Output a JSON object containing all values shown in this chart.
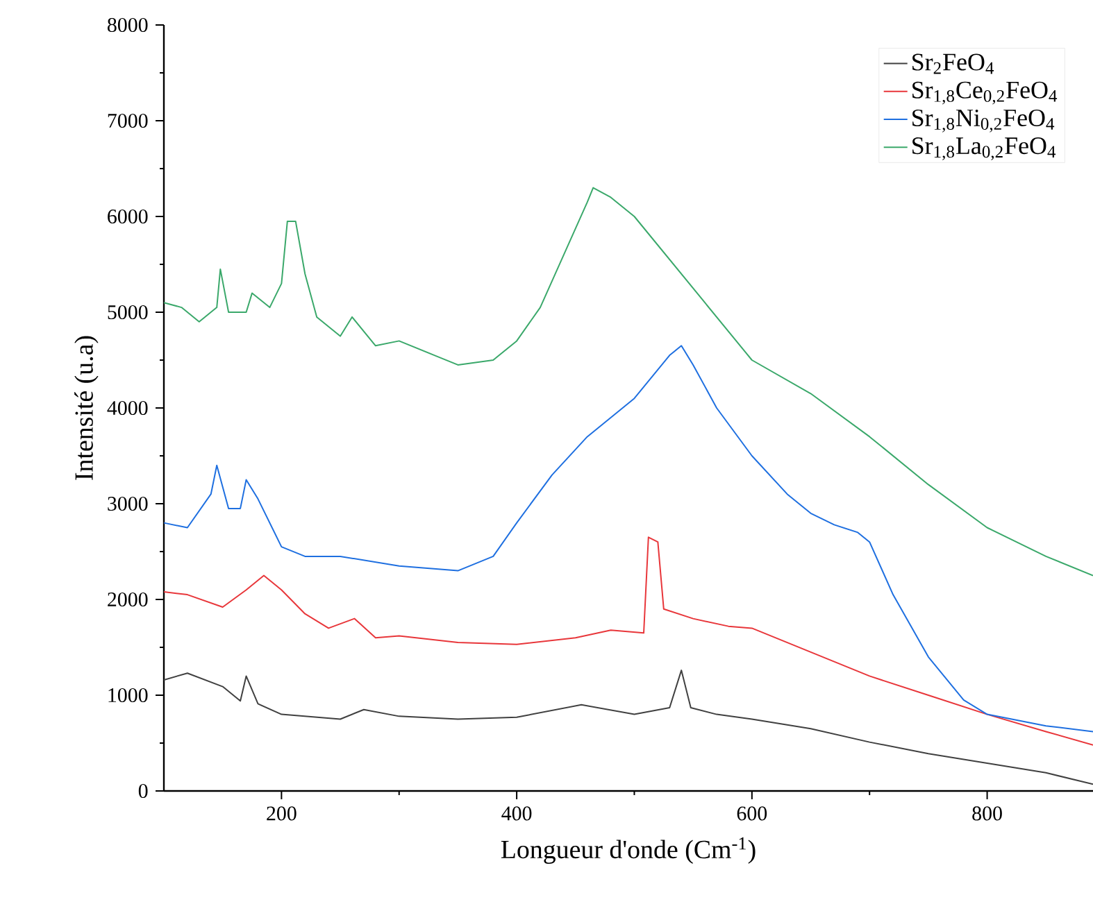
{
  "chart_data": {
    "type": "line",
    "xlabel": "Longueur d'onde (Cm$^{-1}$)",
    "ylabel": "Intensité (u.a)",
    "xlim": [
      100,
      890
    ],
    "ylim": [
      0,
      8000
    ],
    "xticks": [
      200,
      400,
      600,
      800
    ],
    "yticks": [
      0,
      1000,
      2000,
      3000,
      4000,
      5000,
      6000,
      7000,
      8000
    ],
    "legend": "top right",
    "series": [
      {
        "name": "Sr$_{2}$FeO$_{4}$",
        "color": "#404040",
        "x": [
          100,
          120,
          150,
          165,
          170,
          180,
          200,
          250,
          270,
          300,
          350,
          400,
          455,
          500,
          530,
          540,
          548,
          570,
          600,
          650,
          700,
          750,
          800,
          850,
          890
        ],
        "values": [
          1160,
          1230,
          1090,
          940,
          1200,
          910,
          800,
          750,
          850,
          780,
          750,
          770,
          900,
          800,
          870,
          1260,
          870,
          800,
          750,
          650,
          510,
          390,
          290,
          190,
          70
        ]
      },
      {
        "name": "Sr$_{1,8}$Ce$_{0,2}$FeO$_{4}$",
        "color": "#e8363a",
        "x": [
          100,
          120,
          150,
          170,
          185,
          200,
          220,
          240,
          262,
          280,
          300,
          350,
          400,
          450,
          480,
          508,
          512,
          520,
          525,
          550,
          580,
          600,
          650,
          700,
          750,
          800,
          850,
          890
        ],
        "values": [
          2080,
          2050,
          1920,
          2100,
          2250,
          2100,
          1850,
          1700,
          1800,
          1600,
          1620,
          1550,
          1530,
          1600,
          1680,
          1650,
          2650,
          2600,
          1900,
          1800,
          1720,
          1700,
          1450,
          1200,
          1000,
          800,
          620,
          480
        ]
      },
      {
        "name": "Sr$_{1,8}$Ni$_{0,2}$FeO$_{4}$",
        "color": "#1e6fe0",
        "x": [
          100,
          120,
          140,
          145,
          155,
          165,
          170,
          180,
          200,
          220,
          250,
          300,
          350,
          380,
          400,
          430,
          460,
          500,
          530,
          540,
          550,
          570,
          600,
          630,
          650,
          670,
          690,
          700,
          720,
          750,
          780,
          800,
          850,
          890
        ],
        "values": [
          2800,
          2750,
          3100,
          3400,
          2950,
          2950,
          3250,
          3050,
          2550,
          2450,
          2450,
          2350,
          2300,
          2450,
          2800,
          3300,
          3700,
          4100,
          4550,
          4650,
          4450,
          4000,
          3500,
          3100,
          2900,
          2780,
          2700,
          2600,
          2050,
          1400,
          950,
          800,
          680,
          620
        ]
      },
      {
        "name": "Sr$_{1,8}$La$_{0,2}$FeO$_{4}$",
        "color": "#3aa86a",
        "x": [
          100,
          115,
          130,
          145,
          148,
          155,
          170,
          175,
          190,
          200,
          205,
          212,
          220,
          230,
          250,
          260,
          280,
          300,
          330,
          350,
          380,
          400,
          420,
          440,
          460,
          465,
          480,
          500,
          520,
          540,
          560,
          600,
          650,
          700,
          750,
          800,
          850,
          890
        ],
        "values": [
          5100,
          5050,
          4900,
          5050,
          5450,
          5000,
          5000,
          5200,
          5050,
          5300,
          5950,
          5950,
          5400,
          4950,
          4750,
          4950,
          4650,
          4700,
          4550,
          4450,
          4500,
          4700,
          5050,
          5600,
          6150,
          6300,
          6200,
          6000,
          5700,
          5400,
          5100,
          4500,
          4150,
          3700,
          3200,
          2750,
          2450,
          2250
        ]
      }
    ]
  }
}
